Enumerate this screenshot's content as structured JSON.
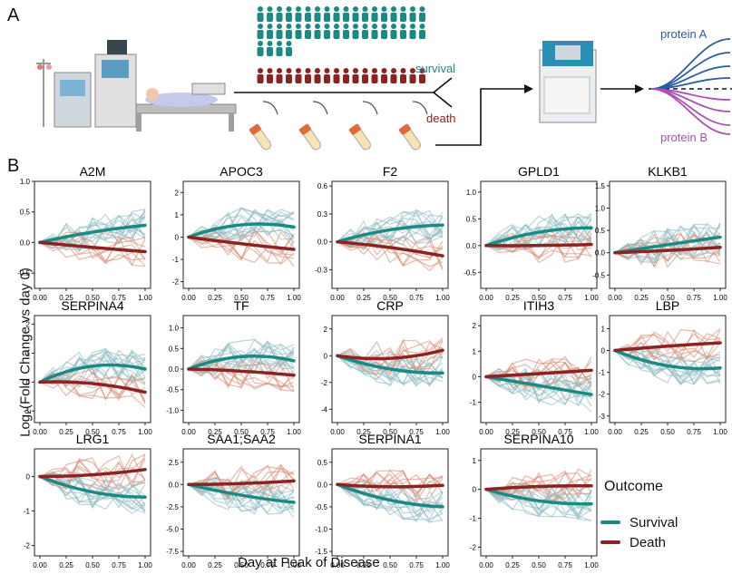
{
  "panel_a": {
    "label": "A",
    "survival_label": "survival",
    "death_label": "death",
    "protein_a_label": "protein A",
    "protein_b_label": "protein B",
    "colors": {
      "survival": "#1b8a83",
      "death": "#8b2323",
      "protein_a": "#2c5aa0",
      "protein_b": "#a94fb5"
    }
  },
  "panel_b": {
    "label": "B",
    "ylabel": "Log₂(Fold Change vs day 0)",
    "xlabel": "Day at Peak of Disease",
    "legend": {
      "title": "Outcome",
      "items": [
        {
          "label": "Survival",
          "color": "#1b8a83"
        },
        {
          "label": "Death",
          "color": "#8b2323"
        }
      ]
    }
  },
  "chart_data": [
    {
      "type": "line",
      "title": "A2M",
      "x": [
        0,
        0.5,
        1.0
      ],
      "xticks": [
        "0.00",
        "0.25",
        "0.50",
        "0.75",
        "1.00"
      ],
      "yticks": [
        "1.0",
        "0.5",
        "0.0",
        "-0.5"
      ],
      "ylim": [
        -0.75,
        1.0
      ],
      "series": [
        {
          "name": "Survival",
          "values": [
            0.0,
            0.17,
            0.28
          ]
        },
        {
          "name": "Death",
          "values": [
            0.0,
            -0.08,
            -0.15
          ]
        }
      ]
    },
    {
      "type": "line",
      "title": "APOC3",
      "x": [
        0,
        0.5,
        1.0
      ],
      "xticks": [
        "0.00",
        "0.25",
        "0.50",
        "0.75",
        "1.00"
      ],
      "yticks": [
        "2",
        "1",
        "0",
        "-1",
        "-2"
      ],
      "ylim": [
        -2.3,
        2.5
      ],
      "series": [
        {
          "name": "Survival",
          "values": [
            0.0,
            0.55,
            0.45
          ]
        },
        {
          "name": "Death",
          "values": [
            0.0,
            -0.3,
            -0.55
          ]
        }
      ]
    },
    {
      "type": "line",
      "title": "F2",
      "x": [
        0,
        0.5,
        1.0
      ],
      "xticks": [
        "0.00",
        "0.25",
        "0.50",
        "0.75",
        "1.00"
      ],
      "yticks": [
        "0.6",
        "0.3",
        "0.0",
        "-0.3"
      ],
      "ylim": [
        -0.5,
        0.65
      ],
      "series": [
        {
          "name": "Survival",
          "values": [
            0.0,
            0.13,
            0.18
          ]
        },
        {
          "name": "Death",
          "values": [
            0.0,
            -0.06,
            -0.15
          ]
        }
      ]
    },
    {
      "type": "line",
      "title": "GPLD1",
      "x": [
        0,
        0.5,
        1.0
      ],
      "xticks": [
        "0.00",
        "0.25",
        "0.50",
        "0.75",
        "1.00"
      ],
      "yticks": [
        "1.0",
        "0.5",
        "0.0",
        "-0.5"
      ],
      "ylim": [
        -0.8,
        1.2
      ],
      "series": [
        {
          "name": "Survival",
          "values": [
            0.0,
            0.25,
            0.33
          ]
        },
        {
          "name": "Death",
          "values": [
            0.0,
            0.0,
            0.02
          ]
        }
      ]
    },
    {
      "type": "line",
      "title": "KLKB1",
      "x": [
        0,
        0.5,
        1.0
      ],
      "xticks": [
        "0.00",
        "0.25",
        "0.50",
        "0.75",
        "1.00"
      ],
      "yticks": [
        "1.5",
        "1.0",
        "0.5",
        "0.0",
        "-0.5"
      ],
      "ylim": [
        -0.8,
        1.6
      ],
      "series": [
        {
          "name": "Survival",
          "values": [
            0.0,
            0.18,
            0.35
          ]
        },
        {
          "name": "Death",
          "values": [
            0.0,
            0.05,
            0.12
          ]
        }
      ]
    },
    {
      "type": "line",
      "title": "SERPINA4",
      "x": [
        0,
        0.5,
        1.0
      ],
      "xticks": [
        "0.00",
        "0.25",
        "0.50",
        "0.75",
        "1.00"
      ],
      "yticks": [
        "2",
        "1",
        "0",
        "-1"
      ],
      "ylim": [
        -1.4,
        2.3
      ],
      "series": [
        {
          "name": "Survival",
          "values": [
            0.0,
            0.55,
            0.45
          ]
        },
        {
          "name": "Death",
          "values": [
            0.0,
            -0.05,
            -0.35
          ]
        }
      ]
    },
    {
      "type": "line",
      "title": "TF",
      "x": [
        0,
        0.5,
        1.0
      ],
      "xticks": [
        "0.00",
        "0.25",
        "0.50",
        "0.75",
        "1.00"
      ],
      "yticks": [
        "1.0",
        "0.5",
        "0.0",
        "-0.5",
        "-1.0"
      ],
      "ylim": [
        -1.3,
        1.3
      ],
      "series": [
        {
          "name": "Survival",
          "values": [
            0.0,
            0.3,
            0.2
          ]
        },
        {
          "name": "Death",
          "values": [
            0.0,
            -0.05,
            -0.15
          ]
        }
      ]
    },
    {
      "type": "line",
      "title": "CRP",
      "x": [
        0,
        0.5,
        1.0
      ],
      "xticks": [
        "0.00",
        "0.25",
        "0.50",
        "0.75",
        "1.00"
      ],
      "yticks": [
        "2",
        "0",
        "-2",
        "-4"
      ],
      "ylim": [
        -5.0,
        3.0
      ],
      "series": [
        {
          "name": "Survival",
          "values": [
            0.0,
            -1.0,
            -1.3
          ]
        },
        {
          "name": "Death",
          "values": [
            0.0,
            -0.2,
            0.4
          ]
        }
      ]
    },
    {
      "type": "line",
      "title": "ITIH3",
      "x": [
        0,
        0.5,
        1.0
      ],
      "xticks": [
        "0.00",
        "0.25",
        "0.50",
        "0.75",
        "1.00"
      ],
      "yticks": [
        "2",
        "1",
        "0",
        "-1"
      ],
      "ylim": [
        -1.8,
        2.4
      ],
      "series": [
        {
          "name": "Survival",
          "values": [
            0.0,
            -0.35,
            -0.7
          ]
        },
        {
          "name": "Death",
          "values": [
            0.0,
            0.12,
            0.25
          ]
        }
      ]
    },
    {
      "type": "line",
      "title": "LBP",
      "x": [
        0,
        0.5,
        1.0
      ],
      "xticks": [
        "0.00",
        "0.25",
        "0.50",
        "0.75",
        "1.00"
      ],
      "yticks": [
        "1",
        "0",
        "-1",
        "-2",
        "-3"
      ],
      "ylim": [
        -3.3,
        1.6
      ],
      "series": [
        {
          "name": "Survival",
          "values": [
            0.0,
            -0.7,
            -0.8
          ]
        },
        {
          "name": "Death",
          "values": [
            0.0,
            0.2,
            0.35
          ]
        }
      ]
    },
    {
      "type": "line",
      "title": "LRG1",
      "x": [
        0,
        0.5,
        1.0
      ],
      "xticks": [
        "0.00",
        "0.25",
        "0.50",
        "0.75",
        "1.00"
      ],
      "yticks": [
        "0",
        "-1",
        "-2"
      ],
      "ylim": [
        -2.3,
        0.8
      ],
      "series": [
        {
          "name": "Survival",
          "values": [
            0.0,
            -0.45,
            -0.6
          ]
        },
        {
          "name": "Death",
          "values": [
            0.0,
            0.05,
            0.2
          ]
        }
      ]
    },
    {
      "type": "line",
      "title": "SAA1;SAA2",
      "x": [
        0,
        0.5,
        1.0
      ],
      "xticks": [
        "0.00",
        "0.25",
        "0.50",
        "0.75",
        "1.00"
      ],
      "yticks": [
        "2.5",
        "0.0",
        "-2.5",
        "-5.0",
        "-7.5"
      ],
      "ylim": [
        -8.0,
        4.0
      ],
      "series": [
        {
          "name": "Survival",
          "values": [
            0.0,
            -1.2,
            -2.0
          ]
        },
        {
          "name": "Death",
          "values": [
            0.0,
            0.1,
            0.4
          ]
        }
      ]
    },
    {
      "type": "line",
      "title": "SERPINA1",
      "x": [
        0,
        0.5,
        1.0
      ],
      "xticks": [
        "0.00",
        "0.25",
        "0.50",
        "0.75",
        "1.00"
      ],
      "yticks": [
        "0.5",
        "0.0",
        "-0.5",
        "-1.0",
        "-1.5"
      ],
      "ylim": [
        -1.6,
        0.8
      ],
      "series": [
        {
          "name": "Survival",
          "values": [
            0.0,
            -0.35,
            -0.5
          ]
        },
        {
          "name": "Death",
          "values": [
            0.0,
            -0.05,
            -0.02
          ]
        }
      ]
    },
    {
      "type": "line",
      "title": "SERPINA10",
      "x": [
        0,
        0.5,
        1.0
      ],
      "xticks": [
        "0.00",
        "0.25",
        "0.50",
        "0.75",
        "1.00"
      ],
      "yticks": [
        "1",
        "0",
        "-1",
        "-2"
      ],
      "ylim": [
        -2.3,
        1.4
      ],
      "series": [
        {
          "name": "Survival",
          "values": [
            0.0,
            -0.4,
            -0.5
          ]
        },
        {
          "name": "Death",
          "values": [
            0.0,
            0.1,
            0.12
          ]
        }
      ]
    }
  ]
}
